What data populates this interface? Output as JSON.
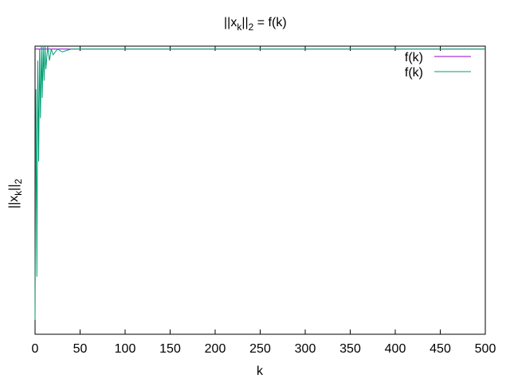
{
  "chart_data": {
    "type": "line",
    "title": {
      "base": "||x",
      "sub": "k",
      "rest": "||",
      "sub2": "2",
      "tail": " = f(k)"
    },
    "xlabel": "k",
    "ylabel": {
      "base": "||x",
      "sub": "k",
      "rest": "||",
      "sub2": "2"
    },
    "xlim": [
      0,
      500
    ],
    "x_ticks": [
      "0",
      "50",
      "100",
      "150",
      "200",
      "250",
      "300",
      "350",
      "400",
      "450",
      "500"
    ],
    "y_ticks_shown": false,
    "grid": false,
    "legend_position": "top-right",
    "series": [
      {
        "name": "f(k)",
        "color": "#9400d3",
        "converged_value": 0.99
      },
      {
        "name": "f(k)",
        "color": "#009e73",
        "converged_value": 0.99,
        "initial_oscillation": [
          [
            0,
            0.05
          ],
          [
            1,
            0.85
          ],
          [
            2,
            0.2
          ],
          [
            3,
            0.95
          ],
          [
            4,
            0.6
          ],
          [
            5,
            0.99
          ],
          [
            6,
            0.75
          ],
          [
            7,
            1.0
          ],
          [
            8,
            0.82
          ],
          [
            9,
            1.0
          ],
          [
            10,
            0.88
          ],
          [
            11,
            1.0
          ],
          [
            12,
            0.92
          ],
          [
            14,
            1.0
          ],
          [
            16,
            0.95
          ],
          [
            18,
            0.99
          ],
          [
            20,
            0.97
          ],
          [
            25,
            0.99
          ],
          [
            30,
            0.98
          ],
          [
            40,
            0.99
          ],
          [
            50,
            0.99
          ],
          [
            500,
            0.99
          ]
        ]
      }
    ]
  }
}
